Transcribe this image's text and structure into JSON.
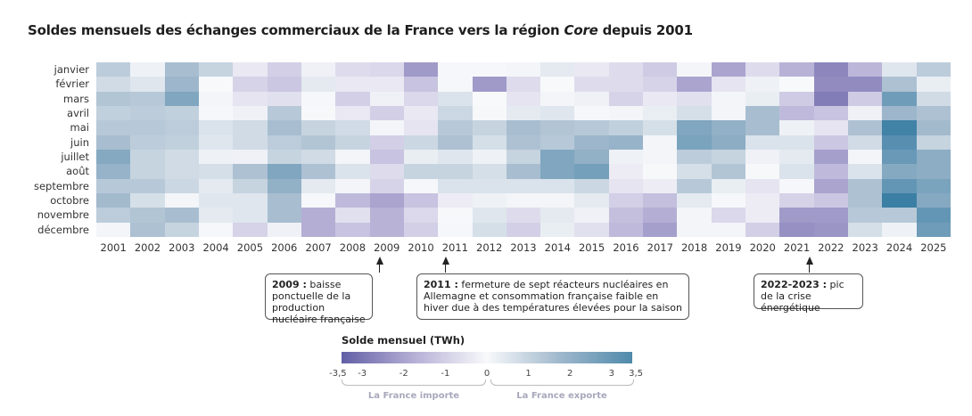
{
  "title_main": "Soldes mensuels des échanges commerciaux de la France vers la région ",
  "title_italic": "Core",
  "title_end": " depuis 2001",
  "annotations": [
    {
      "year_bold": "2009 :",
      "text": " baisse ponctuelle de la production nucléaire française"
    },
    {
      "year_bold": "2011 :",
      "text": " fermeture de sept réacteurs nucléaires en Allemagne et consommation française faible en hiver due à des températures élevées pour la saison"
    },
    {
      "year_bold": "2022-2023 :",
      "text": " pic de la crise énergétique"
    }
  ],
  "legend": {
    "title": "Solde mensuel (TWh)",
    "ticks": [
      "-3,5",
      "-3",
      "-2",
      "-1",
      "0",
      "1",
      "2",
      "3",
      "3,5"
    ],
    "import_label": "La France importe",
    "export_label": "La France exporte",
    "colors": {
      "min": "#625ea5",
      "mid": "#f8f9fb",
      "max": "#3b7fa5"
    }
  },
  "chart_data": {
    "type": "heatmap",
    "title": "Soldes mensuels des échanges commerciaux de la France vers la région Core depuis 2001",
    "x": [
      "2001",
      "2002",
      "2003",
      "2004",
      "2005",
      "2006",
      "2007",
      "2008",
      "2009",
      "2010",
      "2011",
      "2012",
      "2013",
      "2014",
      "2015",
      "2016",
      "2017",
      "2018",
      "2019",
      "2020",
      "2021",
      "2022",
      "2023",
      "2024",
      "2025"
    ],
    "y": [
      "janvier",
      "février",
      "mars",
      "avril",
      "mai",
      "juin",
      "juillet",
      "août",
      "septembre",
      "octobre",
      "novembre",
      "décembre"
    ],
    "value_range": [
      -3.5,
      3.5
    ],
    "unit": "TWh",
    "values_by_year": [
      [
        1.2,
        0.8,
        1.4,
        1.1,
        1.3,
        1.6,
        2.2,
        1.9,
        1.3,
        1.7,
        1.2,
        0.1
      ],
      [
        0.2,
        0.5,
        1.3,
        1.2,
        1.3,
        1.2,
        1.0,
        1.0,
        1.3,
        0.7,
        1.4,
        1.5
      ],
      [
        1.6,
        1.8,
        2.3,
        1.1,
        1.2,
        1.1,
        0.8,
        0.8,
        0.9,
        0.1,
        1.6,
        1.0
      ],
      [
        1.0,
        0.0,
        0.1,
        0.05,
        0.6,
        0.5,
        0.2,
        0.7,
        0.4,
        0.5,
        0.4,
        0.05
      ],
      [
        -0.4,
        -0.9,
        -0.5,
        -0.2,
        0.8,
        0.8,
        -0.2,
        1.5,
        1.0,
        0.5,
        0.5,
        -0.9
      ],
      [
        -1.0,
        -1.2,
        -0.6,
        1.3,
        1.6,
        1.2,
        1.0,
        2.3,
        2.0,
        1.6,
        1.6,
        -0.2
      ],
      [
        -0.2,
        0.4,
        0.05,
        0.02,
        1.0,
        1.4,
        0.8,
        1.5,
        0.4,
        0.05,
        -1.8,
        -1.8
      ],
      [
        -0.7,
        -0.4,
        -1.0,
        -0.4,
        0.8,
        1.0,
        0.1,
        0.6,
        0.1,
        -1.5,
        -0.6,
        -1.3
      ],
      [
        -0.8,
        -0.4,
        -0.2,
        -1.0,
        -0.1,
        -1.0,
        -1.3,
        -0.7,
        -0.9,
        -2.0,
        -1.7,
        -1.7
      ],
      [
        -2.2,
        -1.3,
        -0.8,
        -0.4,
        -0.5,
        0.9,
        0.3,
        1.0,
        0.05,
        -1.3,
        -0.8,
        -1.0
      ],
      [
        0.05,
        0.05,
        0.6,
        0.9,
        1.3,
        1.5,
        0.5,
        1.0,
        0.6,
        -0.3,
        0.02,
        0.05
      ],
      [
        0.05,
        -2.2,
        0.0,
        0.02,
        1.0,
        0.7,
        0.2,
        0.7,
        0.6,
        0.2,
        0.5,
        0.7
      ],
      [
        -0.1,
        -0.7,
        -0.5,
        0.4,
        1.6,
        1.5,
        1.0,
        1.6,
        0.6,
        0.1,
        -0.7,
        -1.0
      ],
      [
        0.4,
        0.0,
        0.1,
        0.5,
        1.4,
        1.3,
        2.3,
        2.3,
        0.6,
        0.1,
        0.4,
        0.3
      ],
      [
        -0.4,
        -0.7,
        -0.2,
        0.05,
        1.3,
        1.8,
        2.0,
        2.5,
        0.9,
        0.4,
        -0.2,
        -0.6
      ],
      [
        -0.7,
        -0.7,
        -0.9,
        0.1,
        1.1,
        1.9,
        0.2,
        -0.3,
        -0.5,
        -1.0,
        -1.4,
        -1.5
      ],
      [
        -1.1,
        -0.9,
        -0.4,
        0.3,
        0.7,
        -0.1,
        -0.1,
        0.02,
        -0.3,
        -1.4,
        -1.8,
        -2.1
      ],
      [
        -0.1,
        -2.0,
        -0.6,
        0.7,
        2.3,
        2.4,
        1.2,
        0.7,
        1.3,
        0.4,
        -0.1,
        -0.1
      ],
      [
        -2.0,
        -0.5,
        -0.1,
        0.1,
        2.0,
        2.1,
        1.0,
        1.4,
        0.3,
        -0.05,
        -0.8,
        -0.1
      ],
      [
        -0.7,
        0.2,
        0.3,
        1.6,
        1.6,
        0.6,
        -0.2,
        0.02,
        -0.5,
        -0.3,
        -0.3,
        -1.0
      ],
      [
        -1.7,
        0.0,
        -1.1,
        -1.5,
        0.2,
        0.6,
        0.4,
        0.6,
        0.05,
        -0.9,
        -2.2,
        -2.4
      ],
      [
        -2.6,
        -2.5,
        -2.8,
        -1.3,
        -0.5,
        -1.2,
        -2.1,
        -1.5,
        -2.0,
        -1.2,
        -2.2,
        -2.3
      ],
      [
        -1.6,
        -2.5,
        -1.1,
        -0.2,
        1.5,
        0.8,
        -0.1,
        0.6,
        1.5,
        1.5,
        1.3,
        0.7
      ],
      [
        0.5,
        1.5,
        2.6,
        1.8,
        3.4,
        3.0,
        2.7,
        2.2,
        2.8,
        3.5,
        1.3,
        0.2
      ],
      [
        1.2,
        0.3,
        0.8,
        1.5,
        1.7,
        1.0,
        2.1,
        2.1,
        2.4,
        2.2,
        2.8,
        2.6
      ]
    ]
  }
}
